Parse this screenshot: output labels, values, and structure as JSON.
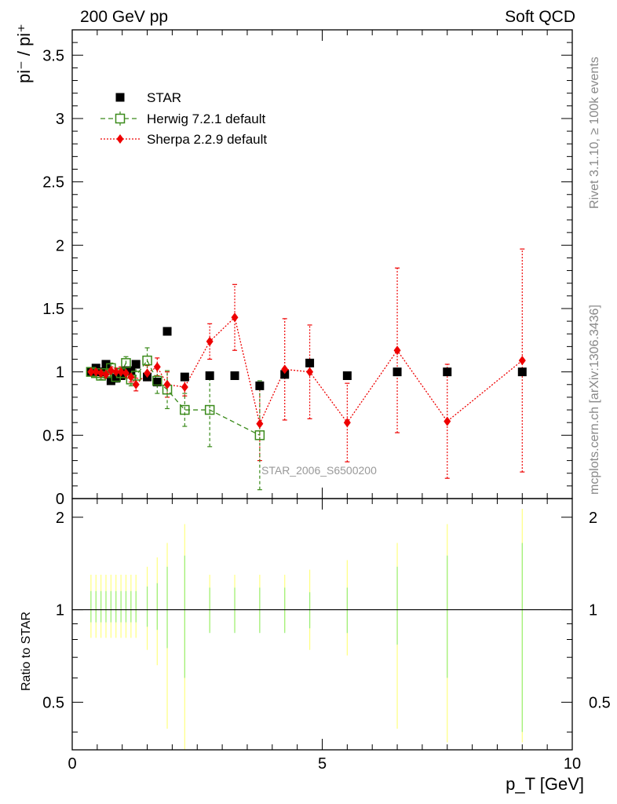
{
  "header": {
    "left": "200 GeV pp",
    "right": "Soft QCD"
  },
  "side_labels": {
    "top": "Rivet 3.1.10, ≥ 100k events",
    "bottom": "mcplots.cern.ch [arXiv:1306.3436]"
  },
  "analysis_id": "STAR_2006_S6500200",
  "colors": {
    "star": "#000000",
    "herwig": "#3a8a1a",
    "sherpa": "#ee0000",
    "band_outer": "#ffff80",
    "band_inner": "#99ee77"
  },
  "chart_data": [
    {
      "type": "scatter",
      "panel": "main",
      "ylabel": "pi⁻ / pi⁺",
      "xlim": [
        0,
        10
      ],
      "ylim": [
        0,
        3.7
      ],
      "yticks": [
        0,
        0.5,
        1,
        1.5,
        2,
        2.5,
        3,
        3.5
      ],
      "yticklabels": [
        "0",
        "0.5",
        "1",
        "1.5",
        "2",
        "2.5",
        "3",
        "3.5"
      ],
      "legend_position": "top-left",
      "series": [
        {
          "name": "STAR",
          "marker": "filled-square",
          "x": [
            0.375,
            0.475,
            0.575,
            0.675,
            0.775,
            0.875,
            0.975,
            1.075,
            1.175,
            1.275,
            1.5,
            1.7,
            1.9,
            2.25,
            2.75,
            3.25,
            3.75,
            4.25,
            4.75,
            5.5,
            6.5,
            7.5,
            9.0
          ],
          "y": [
            1.0,
            1.03,
            1.0,
            1.06,
            0.93,
            0.95,
            0.97,
            1.01,
            1.01,
            1.06,
            0.96,
            0.92,
            1.32,
            0.96,
            0.97,
            0.97,
            0.89,
            0.98,
            1.07,
            0.97,
            1.0,
            1.0,
            1.0
          ]
        },
        {
          "name": "Herwig 7.2.1 default",
          "marker": "open-square",
          "line": "dashed",
          "x": [
            0.375,
            0.475,
            0.575,
            0.675,
            0.775,
            0.875,
            0.975,
            1.075,
            1.175,
            1.275,
            1.5,
            1.7,
            1.9,
            2.25,
            2.75,
            3.75
          ],
          "y": [
            1.0,
            0.99,
            0.97,
            0.99,
            1.03,
            0.96,
            0.99,
            1.07,
            0.94,
            0.97,
            1.09,
            0.93,
            0.86,
            0.7,
            0.7,
            0.5
          ],
          "yerr": [
            0.02,
            0.02,
            0.03,
            0.03,
            0.04,
            0.04,
            0.04,
            0.05,
            0.05,
            0.06,
            0.1,
            0.1,
            0.15,
            0.13,
            0.29,
            0.43
          ]
        },
        {
          "name": "Sherpa 2.2.9 default",
          "marker": "diamond",
          "line": "dotted",
          "x": [
            0.375,
            0.475,
            0.575,
            0.675,
            0.775,
            0.875,
            0.975,
            1.075,
            1.175,
            1.275,
            1.5,
            1.7,
            1.9,
            2.25,
            2.75,
            3.25,
            3.75,
            4.25,
            4.75,
            5.5,
            6.5,
            7.5,
            9.0
          ],
          "y": [
            1.0,
            1.0,
            0.99,
            0.98,
            1.01,
            1.0,
            1.0,
            0.99,
            0.96,
            0.9,
            0.99,
            1.04,
            0.9,
            0.88,
            1.24,
            1.43,
            0.59,
            1.02,
            1.0,
            0.6,
            1.17,
            0.61,
            1.09
          ],
          "yerr": [
            0.02,
            0.02,
            0.03,
            0.03,
            0.03,
            0.03,
            0.04,
            0.04,
            0.04,
            0.05,
            0.06,
            0.07,
            0.1,
            0.07,
            0.14,
            0.26,
            0.29,
            0.4,
            0.37,
            0.31,
            0.65,
            0.45,
            0.88
          ]
        }
      ]
    },
    {
      "type": "scatter",
      "panel": "ratio",
      "xlabel": "p_T [GeV]",
      "ylabel": "Ratio to STAR",
      "xlim": [
        0,
        10
      ],
      "ylim": [
        0.35,
        2.3
      ],
      "log_y": true,
      "xticks": [
        0,
        5,
        10
      ],
      "xticklabels": [
        "0",
        "5",
        "10"
      ],
      "yticks": [
        0.5,
        1,
        2
      ],
      "yticklabels": [
        "0.5",
        "1",
        "2"
      ],
      "reference_line": 1,
      "bands": {
        "x": [
          0.375,
          0.475,
          0.575,
          0.675,
          0.775,
          0.875,
          0.975,
          1.075,
          1.175,
          1.275,
          1.5,
          1.7,
          1.9,
          2.25,
          2.75,
          3.25,
          3.75,
          4.25,
          4.75,
          5.5,
          6.5,
          7.5,
          9.0
        ],
        "inner_low": [
          0.91,
          0.91,
          0.91,
          0.91,
          0.91,
          0.91,
          0.91,
          0.91,
          0.91,
          0.91,
          0.88,
          0.86,
          0.75,
          0.6,
          0.84,
          0.84,
          0.84,
          0.84,
          0.87,
          0.84,
          0.77,
          0.6,
          0.4
        ],
        "inner_high": [
          1.15,
          1.15,
          1.15,
          1.15,
          1.15,
          1.15,
          1.15,
          1.15,
          1.15,
          1.15,
          1.19,
          1.22,
          1.38,
          1.5,
          1.18,
          1.18,
          1.18,
          1.18,
          1.14,
          1.18,
          1.38,
          1.5,
          1.65
        ],
        "outer_low": [
          0.81,
          0.81,
          0.81,
          0.81,
          0.81,
          0.81,
          0.81,
          0.81,
          0.81,
          0.81,
          0.74,
          0.66,
          0.41,
          0.35,
          0.85,
          0.85,
          0.85,
          0.85,
          0.74,
          0.71,
          0.41,
          0.37,
          0.37
        ],
        "outer_high": [
          1.3,
          1.3,
          1.3,
          1.3,
          1.3,
          1.3,
          1.3,
          1.3,
          1.3,
          1.3,
          1.38,
          1.48,
          1.65,
          1.9,
          1.3,
          1.3,
          1.3,
          1.3,
          1.35,
          1.45,
          1.65,
          1.9,
          2.13
        ]
      }
    }
  ]
}
